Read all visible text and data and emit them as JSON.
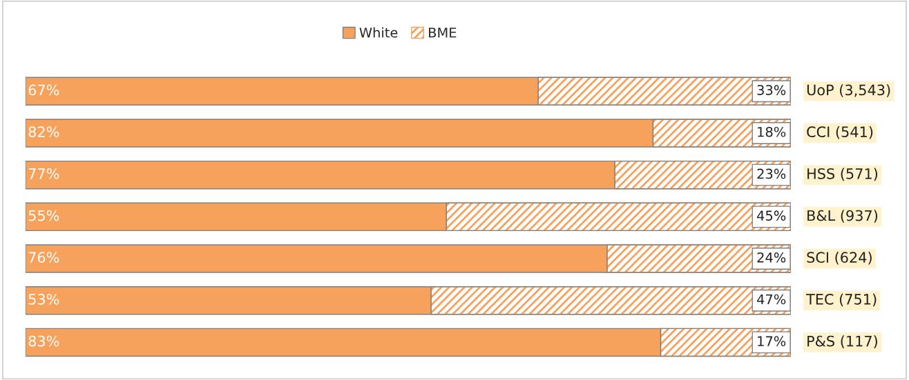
{
  "chart_data": {
    "type": "bar",
    "orientation": "horizontal",
    "stacked": true,
    "tick_labels": false,
    "legend": "top",
    "categories": [
      "UoP (3,543)",
      "CCI (541)",
      "HSS (571)",
      "B&L (937)",
      "SCI (624)",
      "TEC (751)",
      "P&S (117)"
    ],
    "series": [
      {
        "name": "White",
        "color": "#f6a25c",
        "values": [
          67,
          82,
          77,
          55,
          76,
          53,
          83
        ],
        "value_labels": [
          "67%",
          "82%",
          "77%",
          "55%",
          "76%",
          "53%",
          "83%"
        ]
      },
      {
        "name": "BME",
        "color": "#f6a25c",
        "values": [
          33,
          18,
          23,
          45,
          24,
          47,
          17
        ],
        "value_labels": [
          "33%",
          "18%",
          "23%",
          "45%",
          "24%",
          "47%",
          "17%"
        ]
      }
    ]
  }
}
